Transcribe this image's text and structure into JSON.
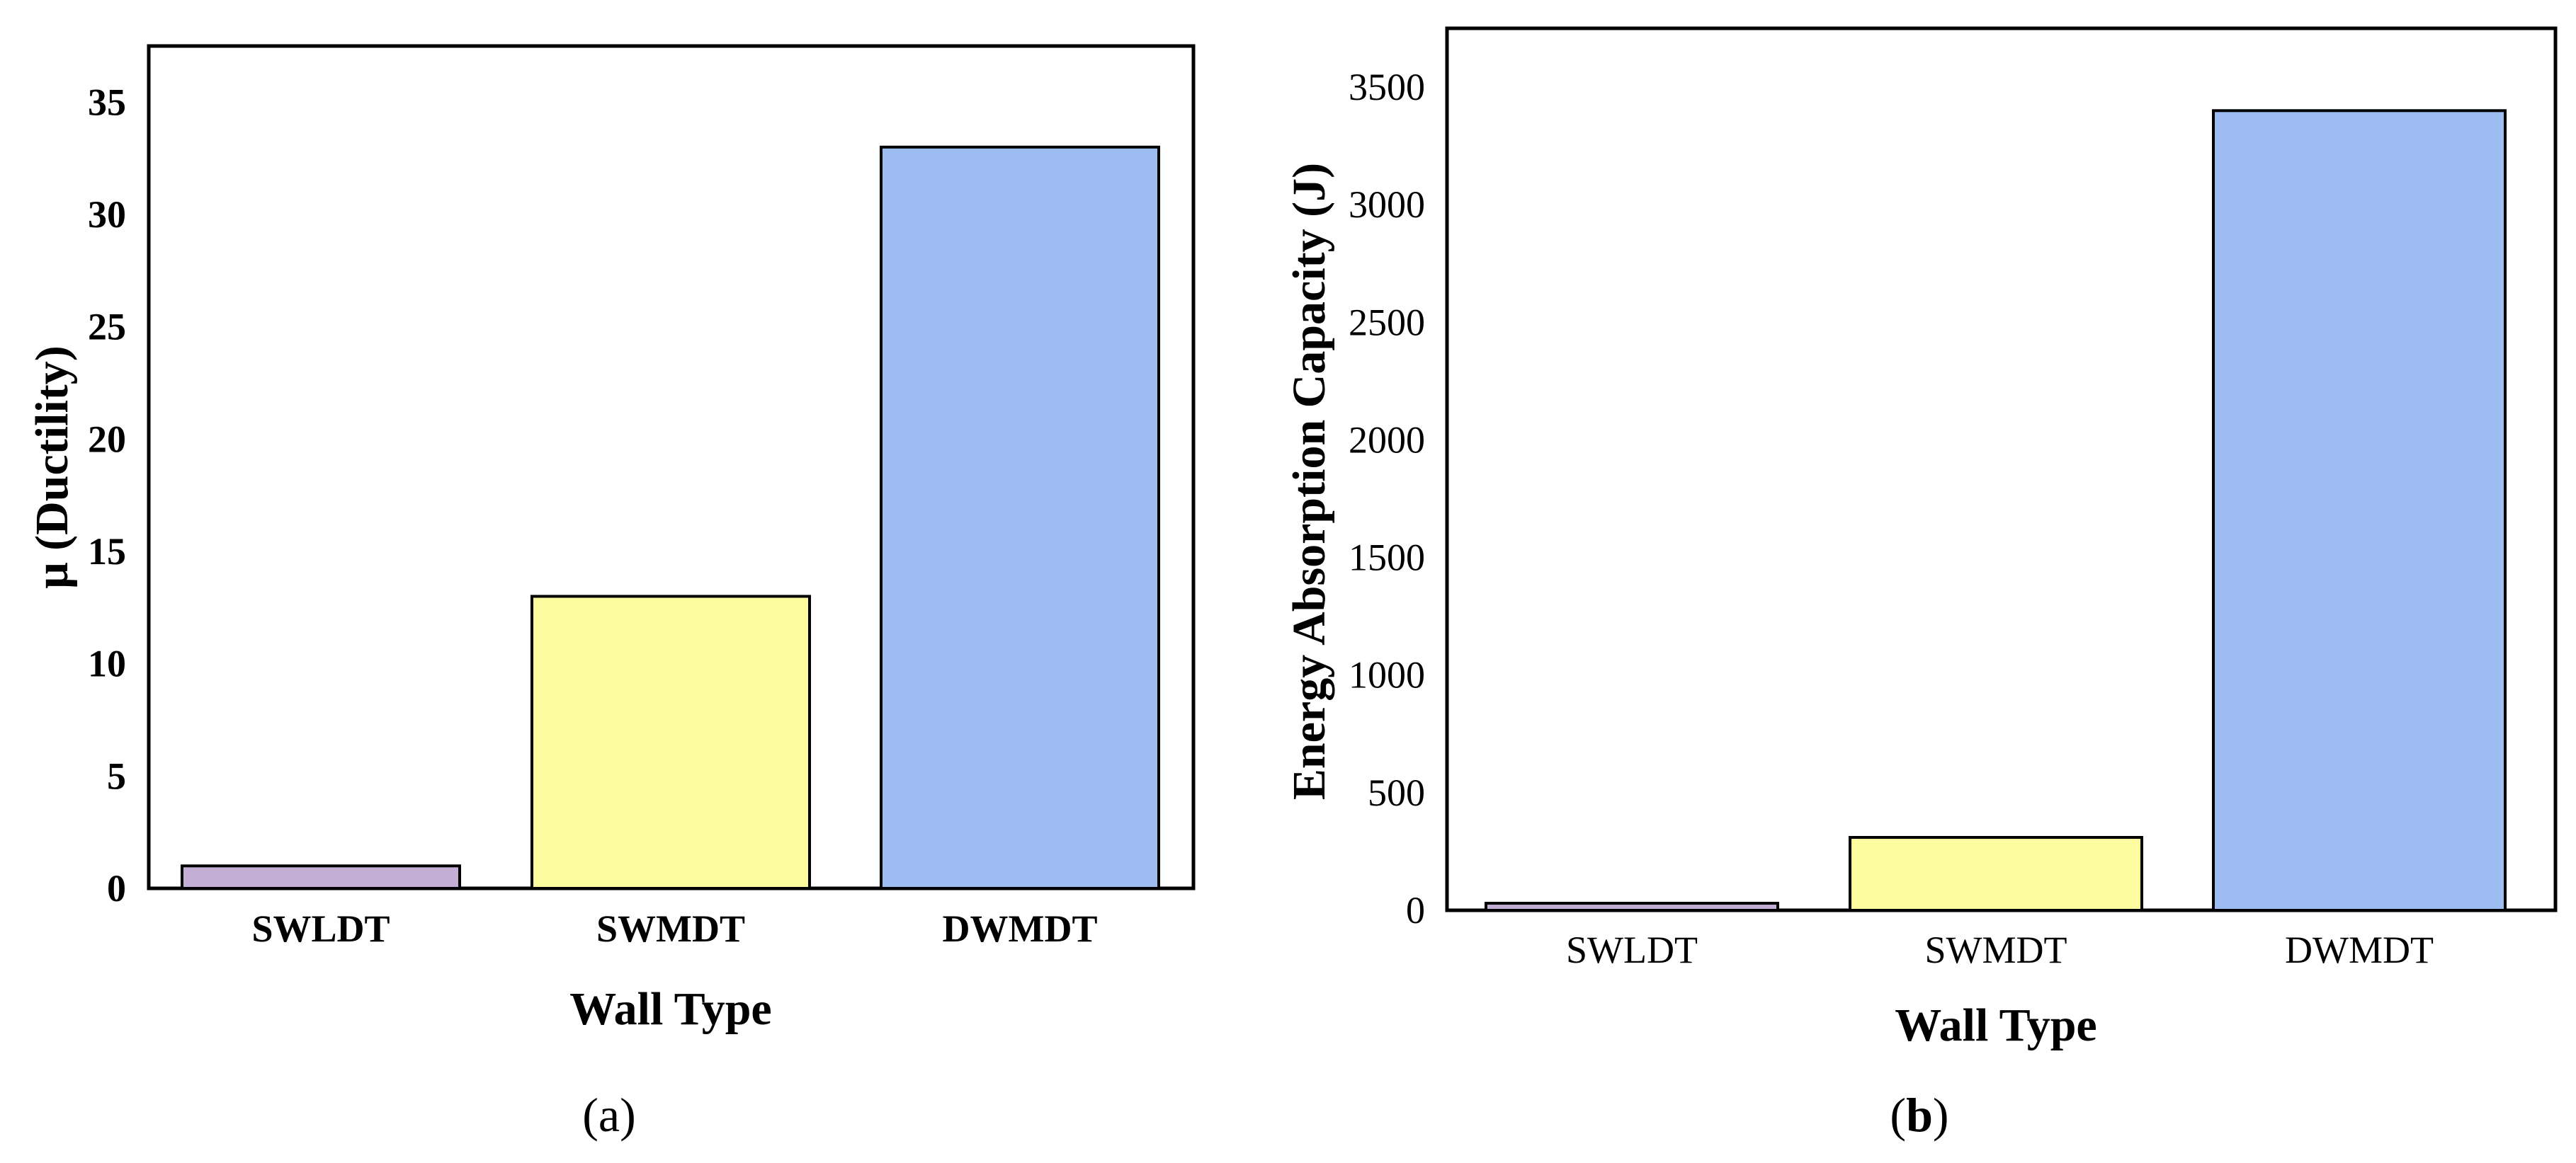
{
  "chart_data": [
    {
      "type": "bar",
      "panel_label": "(a)",
      "panel_letter": "a",
      "xlabel": "Wall Type",
      "ylabel": "μ (Ductility)",
      "categories": [
        "SWLDT",
        "SWMDT",
        "DWMDT"
      ],
      "values": [
        1,
        13,
        33
      ],
      "colors": [
        "#c3aed6",
        "#fdfda0",
        "#9dbcf2"
      ],
      "ylim": [
        0,
        37.5
      ],
      "yticks": [
        0,
        5,
        10,
        15,
        20,
        25,
        30,
        35
      ],
      "grid": false,
      "tick_style": "bold"
    },
    {
      "type": "bar",
      "panel_label": "(b)",
      "panel_letter": "b",
      "xlabel": "Wall Type",
      "ylabel": "Energy Absorption Capacity (J)",
      "categories": [
        "SWLDT",
        "SWMDT",
        "DWMDT"
      ],
      "values": [
        30,
        310,
        3400
      ],
      "colors": [
        "#c3aed6",
        "#fdfda0",
        "#9dbcf2"
      ],
      "ylim": [
        0,
        3750
      ],
      "yticks": [
        0,
        500,
        1000,
        1500,
        2000,
        2500,
        3000,
        3500
      ],
      "grid": false,
      "tick_style": "regular"
    }
  ]
}
